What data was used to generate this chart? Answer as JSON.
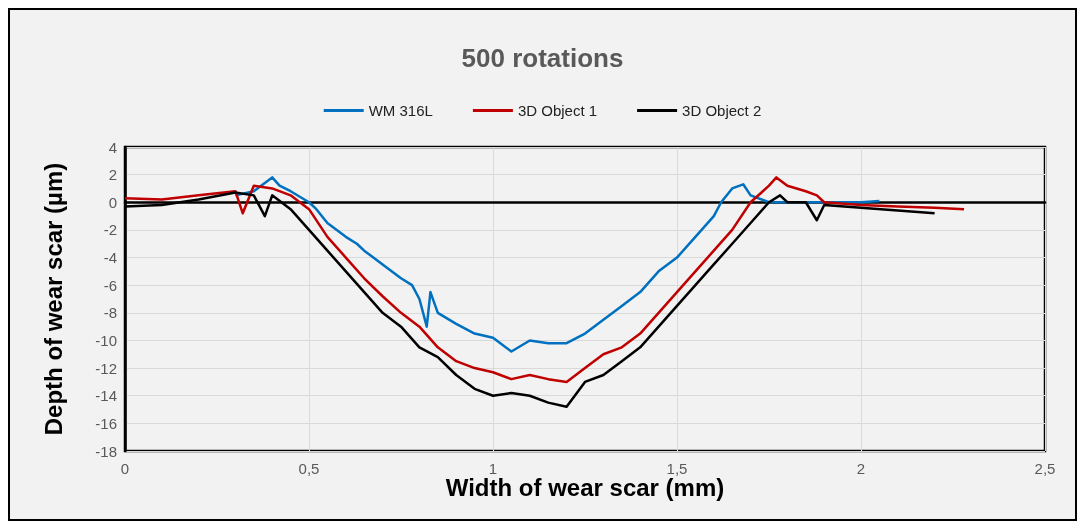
{
  "chart_data": {
    "type": "line",
    "title": "500 rotations",
    "xlabel": "Width of wear scar (mm)",
    "ylabel": "Depth of wear scar (µm)",
    "xlim": [
      0,
      2.5
    ],
    "xticks": [
      0,
      {
        "value": 0.5,
        "label": "0,5"
      },
      1,
      {
        "value": 1.5,
        "label": "1,5"
      },
      2,
      {
        "value": 2.5,
        "label": "2,5"
      }
    ],
    "ylim": [
      -18,
      4
    ],
    "yticks": [
      -18,
      -16,
      -14,
      -12,
      -10,
      -8,
      -6,
      -4,
      -2,
      0,
      2,
      4
    ],
    "grid": true,
    "legend": "top",
    "marker": "none",
    "line_style": "solid",
    "series": [
      {
        "name": "WM 316L",
        "color": "#0070c0",
        "x": [
          0.3,
          0.35,
          0.4,
          0.42,
          0.45,
          0.5,
          0.52,
          0.55,
          0.6,
          0.63,
          0.65,
          0.7,
          0.75,
          0.78,
          0.8,
          0.82,
          0.83,
          0.85,
          0.9,
          0.95,
          1.0,
          1.05,
          1.1,
          1.15,
          1.2,
          1.25,
          1.3,
          1.35,
          1.4,
          1.45,
          1.5,
          1.55,
          1.6,
          1.62,
          1.65,
          1.68,
          1.7,
          1.75,
          1.8,
          1.9,
          2.0,
          2.05
        ],
        "values": [
          0.5,
          0.8,
          1.8,
          1.2,
          0.8,
          0,
          -0.5,
          -1.5,
          -2.5,
          -3,
          -3.5,
          -4.5,
          -5.5,
          -6,
          -7,
          -9,
          -6.5,
          -8,
          -8.8,
          -9.5,
          -9.8,
          -10.8,
          -10,
          -10.2,
          -10.2,
          -9.5,
          -8.5,
          -7.5,
          -6.5,
          -5,
          -4,
          -2.5,
          -1,
          0,
          1,
          1.3,
          0.5,
          0,
          0,
          0,
          0,
          0.1
        ]
      },
      {
        "name": "3D Object 1",
        "color": "#c00000",
        "x": [
          0,
          0.1,
          0.2,
          0.3,
          0.32,
          0.35,
          0.4,
          0.45,
          0.5,
          0.55,
          0.6,
          0.65,
          0.7,
          0.75,
          0.8,
          0.85,
          0.9,
          0.95,
          1.0,
          1.05,
          1.1,
          1.15,
          1.2,
          1.25,
          1.3,
          1.35,
          1.4,
          1.45,
          1.5,
          1.55,
          1.6,
          1.65,
          1.7,
          1.75,
          1.77,
          1.8,
          1.85,
          1.88,
          1.9,
          2.0,
          2.1,
          2.2,
          2.28
        ],
        "values": [
          0.3,
          0.2,
          0.5,
          0.8,
          -0.8,
          1.2,
          1,
          0.5,
          -0.5,
          -2.5,
          -4,
          -5.5,
          -6.8,
          -8,
          -9,
          -10.5,
          -11.5,
          -12,
          -12.3,
          -12.8,
          -12.5,
          -12.8,
          -13,
          -12,
          -11,
          -10.5,
          -9.5,
          -8,
          -6.5,
          -5,
          -3.5,
          -2,
          0,
          1.2,
          1.8,
          1.2,
          0.8,
          0.5,
          0,
          -0.2,
          -0.3,
          -0.4,
          -0.5
        ]
      },
      {
        "name": "3D Object 2",
        "color": "#000000",
        "x": [
          0,
          0.1,
          0.2,
          0.3,
          0.35,
          0.38,
          0.4,
          0.45,
          0.5,
          0.55,
          0.6,
          0.65,
          0.7,
          0.75,
          0.8,
          0.85,
          0.9,
          0.95,
          1.0,
          1.05,
          1.1,
          1.15,
          1.2,
          1.25,
          1.3,
          1.35,
          1.4,
          1.45,
          1.5,
          1.55,
          1.6,
          1.65,
          1.7,
          1.75,
          1.78,
          1.8,
          1.85,
          1.88,
          1.9,
          2.0,
          2.1,
          2.2
        ],
        "values": [
          -0.3,
          -0.2,
          0.2,
          0.7,
          0.5,
          -1,
          0.5,
          -0.5,
          -2,
          -3.5,
          -5,
          -6.5,
          -8,
          -9,
          -10.5,
          -11.2,
          -12.5,
          -13.5,
          -14,
          -13.8,
          -14,
          -14.5,
          -14.8,
          -13,
          -12.5,
          -11.5,
          -10.5,
          -9,
          -7.5,
          -6,
          -4.5,
          -3,
          -1.5,
          0,
          0.5,
          0,
          0,
          -1.3,
          -0.2,
          -0.4,
          -0.6,
          -0.8
        ]
      }
    ]
  }
}
